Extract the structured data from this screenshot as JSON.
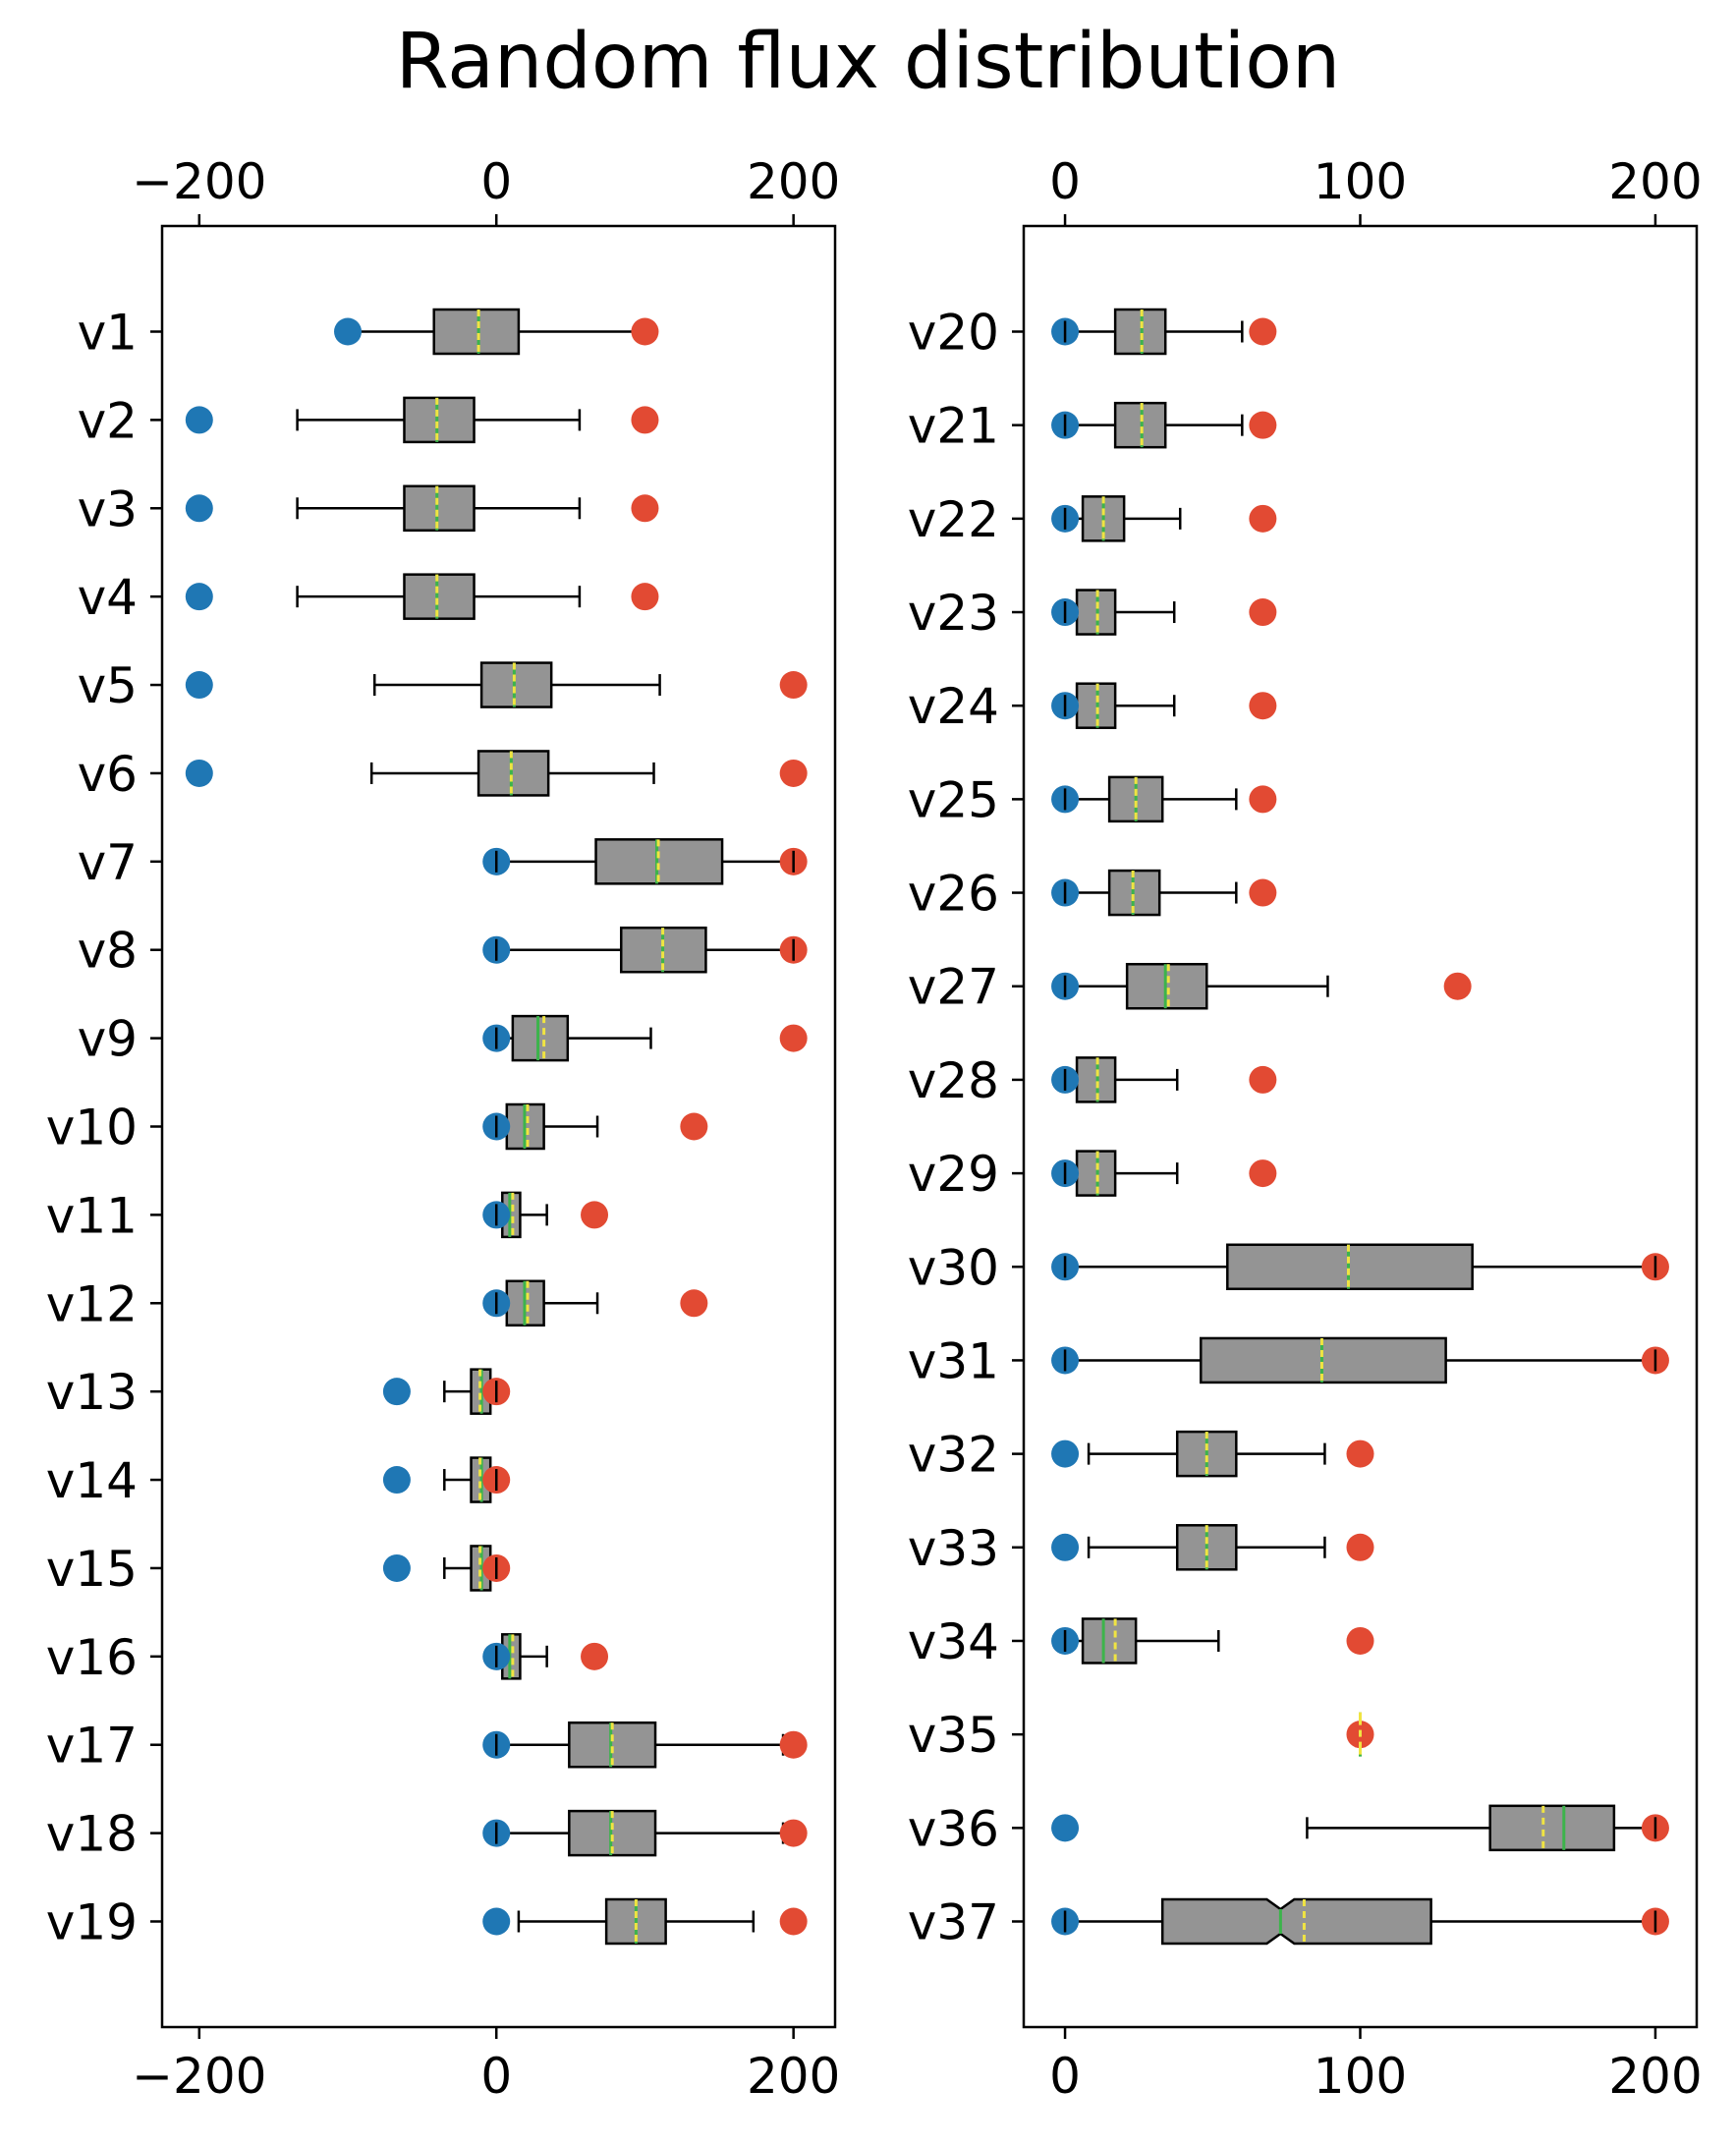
{
  "chart_data": {
    "title": "Random flux distribution",
    "type": "boxplot",
    "colors": {
      "box_fill": "#949494",
      "median": "#3cb44b",
      "mean": "#f0e442",
      "min_marker": "#1f77b4",
      "max_marker": "#e24a33"
    },
    "panels": [
      {
        "xlim": [
          -225,
          228
        ],
        "xticks": [
          -200,
          0,
          200
        ],
        "xtick_labels": [
          "−200",
          "0",
          "200"
        ],
        "rows": [
          {
            "label": "v1",
            "min": -100,
            "max": 100,
            "q1": -42,
            "q3": 15,
            "median": -12,
            "mean": -12,
            "wlo": -98,
            "whi": 97,
            "notched": false
          },
          {
            "label": "v2",
            "min": -200,
            "max": 100,
            "q1": -62,
            "q3": -15,
            "median": -40,
            "mean": -40,
            "wlo": -134,
            "whi": 56,
            "notched": false
          },
          {
            "label": "v3",
            "min": -200,
            "max": 100,
            "q1": -62,
            "q3": -15,
            "median": -40,
            "mean": -40,
            "wlo": -134,
            "whi": 56,
            "notched": false
          },
          {
            "label": "v4",
            "min": -200,
            "max": 100,
            "q1": -62,
            "q3": -15,
            "median": -40,
            "mean": -40,
            "wlo": -134,
            "whi": 56,
            "notched": false
          },
          {
            "label": "v5",
            "min": -200,
            "max": 200,
            "q1": -10,
            "q3": 37,
            "median": 12,
            "mean": 12,
            "wlo": -82,
            "whi": 110,
            "notched": false
          },
          {
            "label": "v6",
            "min": -200,
            "max": 200,
            "q1": -12,
            "q3": 35,
            "median": 10,
            "mean": 10,
            "wlo": -84,
            "whi": 106,
            "notched": false
          },
          {
            "label": "v7",
            "min": 0,
            "max": 200,
            "q1": 67,
            "q3": 152,
            "median": 108,
            "mean": 109,
            "wlo": 0,
            "whi": 200,
            "notched": false
          },
          {
            "label": "v8",
            "min": 0,
            "max": 200,
            "q1": 84,
            "q3": 141,
            "median": 112,
            "mean": 112,
            "wlo": 0,
            "whi": 200,
            "notched": false
          },
          {
            "label": "v9",
            "min": 0,
            "max": 200,
            "q1": 11,
            "q3": 48,
            "median": 28,
            "mean": 32,
            "wlo": 0,
            "whi": 104,
            "notched": false
          },
          {
            "label": "v10",
            "min": 0,
            "max": 133,
            "q1": 7,
            "q3": 32,
            "median": 19,
            "mean": 21,
            "wlo": 0,
            "whi": 68,
            "notched": false
          },
          {
            "label": "v11",
            "min": 0,
            "max": 66,
            "q1": 4,
            "q3": 16,
            "median": 9,
            "mean": 11,
            "wlo": 0,
            "whi": 34,
            "notched": false
          },
          {
            "label": "v12",
            "min": 0,
            "max": 133,
            "q1": 7,
            "q3": 32,
            "median": 19,
            "mean": 21,
            "wlo": 0,
            "whi": 68,
            "notched": false
          },
          {
            "label": "v13",
            "min": -67,
            "max": 0,
            "q1": -17,
            "q3": -4,
            "median": -10,
            "mean": -11,
            "wlo": -35,
            "whi": 0,
            "notched": false
          },
          {
            "label": "v14",
            "min": -67,
            "max": 0,
            "q1": -17,
            "q3": -4,
            "median": -10,
            "mean": -11,
            "wlo": -35,
            "whi": 0,
            "notched": false
          },
          {
            "label": "v15",
            "min": -67,
            "max": 0,
            "q1": -17,
            "q3": -4,
            "median": -10,
            "mean": -11,
            "wlo": -35,
            "whi": 0,
            "notched": false
          },
          {
            "label": "v16",
            "min": 0,
            "max": 66,
            "q1": 4,
            "q3": 16,
            "median": 9,
            "mean": 11,
            "wlo": 0,
            "whi": 34,
            "notched": false
          },
          {
            "label": "v17",
            "min": 0,
            "max": 200,
            "q1": 49,
            "q3": 107,
            "median": 77,
            "mean": 78,
            "wlo": 0,
            "whi": 193,
            "notched": false
          },
          {
            "label": "v18",
            "min": 0,
            "max": 200,
            "q1": 49,
            "q3": 107,
            "median": 77,
            "mean": 78,
            "wlo": 0,
            "whi": 193,
            "notched": false
          },
          {
            "label": "v19",
            "min": 0,
            "max": 200,
            "q1": 74,
            "q3": 114,
            "median": 94,
            "mean": 94,
            "wlo": 15,
            "whi": 173,
            "notched": false
          }
        ]
      },
      {
        "xlim": [
          -14,
          214
        ],
        "xticks": [
          0,
          100,
          200
        ],
        "xtick_labels": [
          "0",
          "100",
          "200"
        ],
        "rows": [
          {
            "label": "v20",
            "min": 0,
            "max": 67,
            "q1": 17,
            "q3": 34,
            "median": 26,
            "mean": 26,
            "wlo": 0,
            "whi": 60,
            "notched": false
          },
          {
            "label": "v21",
            "min": 0,
            "max": 67,
            "q1": 17,
            "q3": 34,
            "median": 26,
            "mean": 26,
            "wlo": 0,
            "whi": 60,
            "notched": false
          },
          {
            "label": "v22",
            "min": 0,
            "max": 67,
            "q1": 6,
            "q3": 20,
            "median": 13,
            "mean": 13,
            "wlo": 0,
            "whi": 39,
            "notched": false
          },
          {
            "label": "v23",
            "min": 0,
            "max": 67,
            "q1": 4,
            "q3": 17,
            "median": 11,
            "mean": 11,
            "wlo": 0,
            "whi": 37,
            "notched": false
          },
          {
            "label": "v24",
            "min": 0,
            "max": 67,
            "q1": 4,
            "q3": 17,
            "median": 11,
            "mean": 11,
            "wlo": 0,
            "whi": 37,
            "notched": false
          },
          {
            "label": "v25",
            "min": 0,
            "max": 67,
            "q1": 15,
            "q3": 33,
            "median": 24,
            "mean": 24,
            "wlo": 0,
            "whi": 58,
            "notched": false
          },
          {
            "label": "v26",
            "min": 0,
            "max": 67,
            "q1": 15,
            "q3": 32,
            "median": 23,
            "mean": 23,
            "wlo": 0,
            "whi": 58,
            "notched": false
          },
          {
            "label": "v27",
            "min": 0,
            "max": 133,
            "q1": 21,
            "q3": 48,
            "median": 34,
            "mean": 35,
            "wlo": 0,
            "whi": 89,
            "notched": false
          },
          {
            "label": "v28",
            "min": 0,
            "max": 67,
            "q1": 4,
            "q3": 17,
            "median": 11,
            "mean": 11,
            "wlo": 0,
            "whi": 38,
            "notched": false
          },
          {
            "label": "v29",
            "min": 0,
            "max": 67,
            "q1": 4,
            "q3": 17,
            "median": 11,
            "mean": 11,
            "wlo": 0,
            "whi": 38,
            "notched": false
          },
          {
            "label": "v30",
            "min": 0,
            "max": 200,
            "q1": 55,
            "q3": 138,
            "median": 96,
            "mean": 96,
            "wlo": 0,
            "whi": 200,
            "notched": false
          },
          {
            "label": "v31",
            "min": 0,
            "max": 200,
            "q1": 46,
            "q3": 129,
            "median": 87,
            "mean": 87,
            "wlo": 0,
            "whi": 200,
            "notched": false
          },
          {
            "label": "v32",
            "min": 0,
            "max": 100,
            "q1": 38,
            "q3": 58,
            "median": 48,
            "mean": 48,
            "wlo": 8,
            "whi": 88,
            "notched": false
          },
          {
            "label": "v33",
            "min": 0,
            "max": 100,
            "q1": 38,
            "q3": 58,
            "median": 48,
            "mean": 48,
            "wlo": 8,
            "whi": 88,
            "notched": false
          },
          {
            "label": "v34",
            "min": 0,
            "max": 100,
            "q1": 6,
            "q3": 24,
            "median": 13,
            "mean": 17,
            "wlo": 0,
            "whi": 52,
            "notched": false
          },
          {
            "label": "v35",
            "min": null,
            "max": 100,
            "q1": 100,
            "q3": 100,
            "median": 100,
            "mean": 100,
            "wlo": 100,
            "whi": 100,
            "notched": false
          },
          {
            "label": "v36",
            "min": 0,
            "max": 200,
            "q1": 144,
            "q3": 186,
            "median": 169,
            "mean": 162,
            "wlo": 82,
            "whi": 200,
            "notched": false
          },
          {
            "label": "v37",
            "min": 0,
            "max": 200,
            "q1": 33,
            "q3": 124,
            "median": 73,
            "mean": 81,
            "wlo": 0,
            "whi": 200,
            "notched": true
          }
        ]
      }
    ]
  }
}
